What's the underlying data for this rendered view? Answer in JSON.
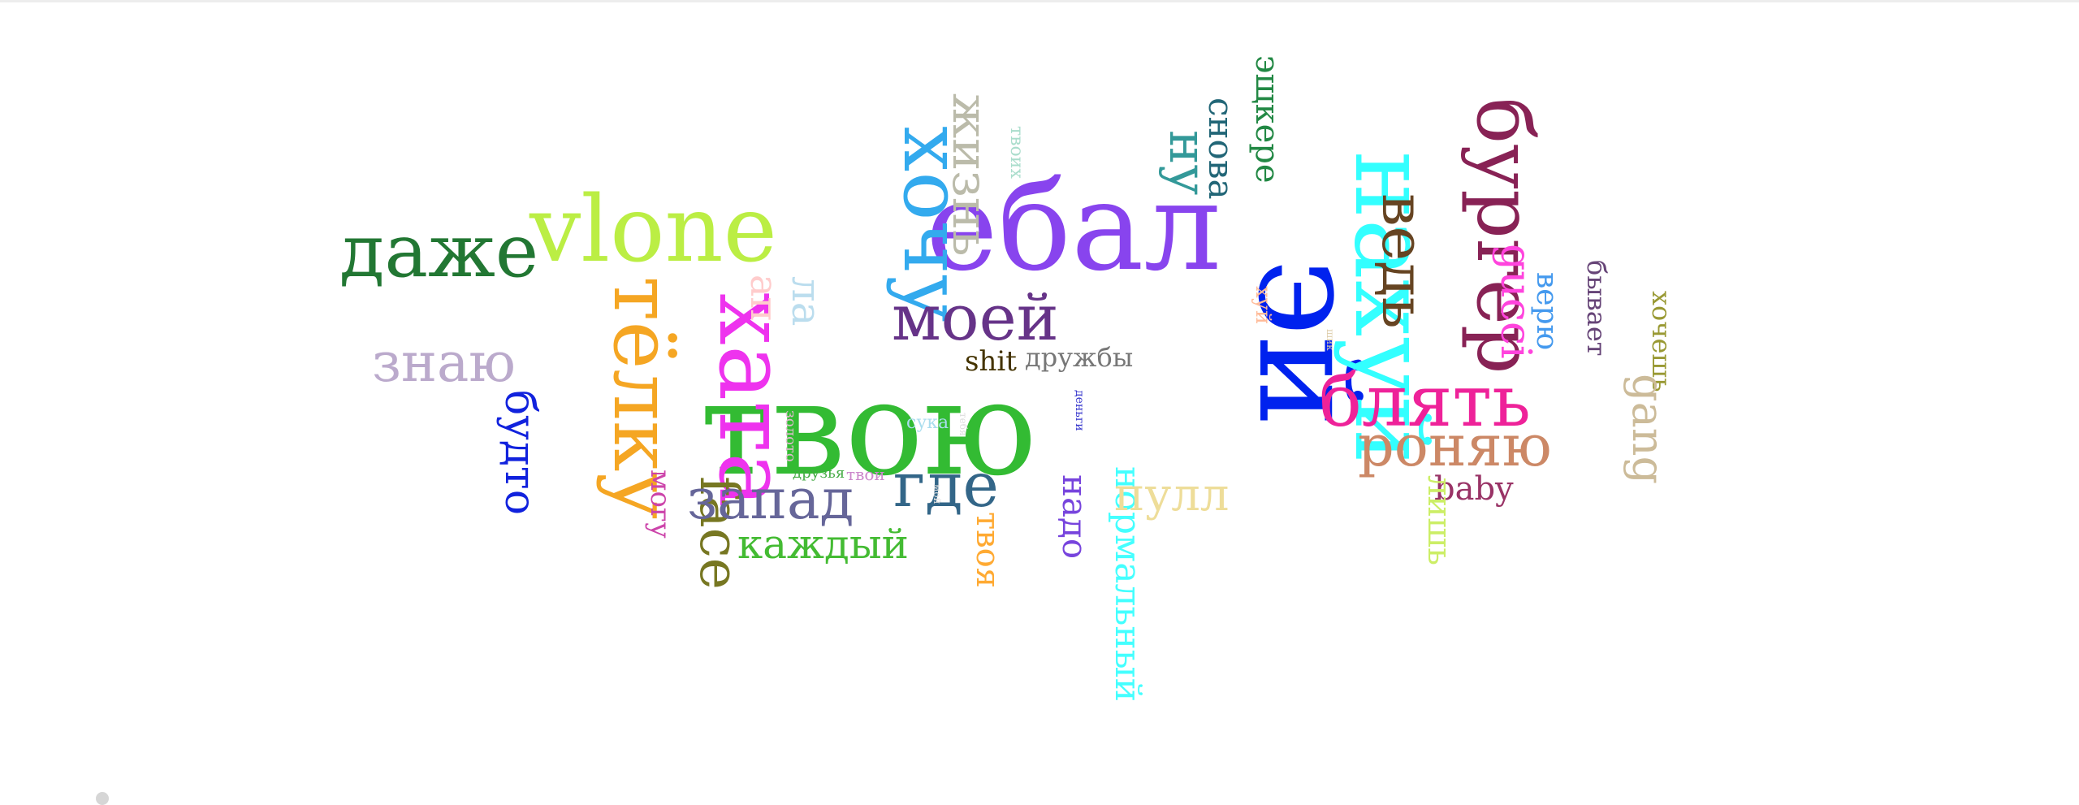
{
  "words": [
    {
      "text": "твою",
      "color": "#33bb33"
    },
    {
      "text": "ебал",
      "color": "#8844ee"
    },
    {
      "text": "эй",
      "color": "#0022ee"
    },
    {
      "text": "нахуй",
      "color": "#33ffff"
    },
    {
      "text": "vlone",
      "color": "#bbee44"
    },
    {
      "text": "хочу",
      "color": "#33aaee"
    },
    {
      "text": "тёлку",
      "color": "#f5a623"
    },
    {
      "text": "хата",
      "color": "#ee33ee"
    },
    {
      "text": "даже",
      "color": "#227733"
    },
    {
      "text": "бургер",
      "color": "#882255"
    },
    {
      "text": "блять",
      "color": "#ee2299"
    },
    {
      "text": "моей",
      "color": "#663388"
    },
    {
      "text": "жизнь",
      "color": "#bbbbaa"
    },
    {
      "text": "ну",
      "color": "#339999"
    },
    {
      "text": "снова",
      "color": "#226677"
    },
    {
      "text": "эщкере",
      "color": "#228844"
    },
    {
      "text": "ведь",
      "color": "#664422"
    },
    {
      "text": "роняю",
      "color": "#cc8866"
    },
    {
      "text": "знаю",
      "color": "#bbaacc"
    },
    {
      "text": "будто",
      "color": "#1122dd"
    },
    {
      "text": "face",
      "color": "#777722"
    },
    {
      "text": "запад",
      "color": "#666699"
    },
    {
      "text": "где",
      "color": "#336688"
    },
    {
      "text": "каждый",
      "color": "#44bb33"
    },
    {
      "text": "твоя",
      "color": "#ffaa33"
    },
    {
      "text": "надо",
      "color": "#7744dd"
    },
    {
      "text": "нормальный",
      "color": "#44ffff"
    },
    {
      "text": "пулл",
      "color": "#eedd99"
    },
    {
      "text": "gucci",
      "color": "#ff44dd"
    },
    {
      "text": "верю",
      "color": "#4499ee"
    },
    {
      "text": "бывает",
      "color": "#664477"
    },
    {
      "text": "хочешь",
      "color": "#999933"
    },
    {
      "text": "gang",
      "color": "#ccbb99"
    },
    {
      "text": "baby",
      "color": "#993366"
    },
    {
      "text": "лишь",
      "color": "#ccee66"
    },
    {
      "text": "ап",
      "color": "#ffcccc"
    },
    {
      "text": "ла",
      "color": "#bbddee"
    },
    {
      "text": "могу",
      "color": "#cc44aa"
    },
    {
      "text": "shit",
      "color": "#443300"
    },
    {
      "text": "дружбы",
      "color": "#777777"
    },
    {
      "text": "хуй",
      "color": "#ffbb99"
    },
    {
      "text": "твоих",
      "color": "#aaddcc"
    },
    {
      "text": "сука",
      "color": "#aaddee"
    },
    {
      "text": "деньги",
      "color": "#3333cc"
    },
    {
      "text": "золото",
      "color": "#ddbbcc"
    },
    {
      "text": "друзья",
      "color": "#44aa44"
    },
    {
      "text": "твои",
      "color": "#cc88cc"
    },
    {
      "text": "тебя",
      "color": "#dddddd"
    },
    {
      "text": "мой",
      "color": "#dddddd"
    },
    {
      "text": "шик",
      "color": "#ddccaa"
    }
  ]
}
